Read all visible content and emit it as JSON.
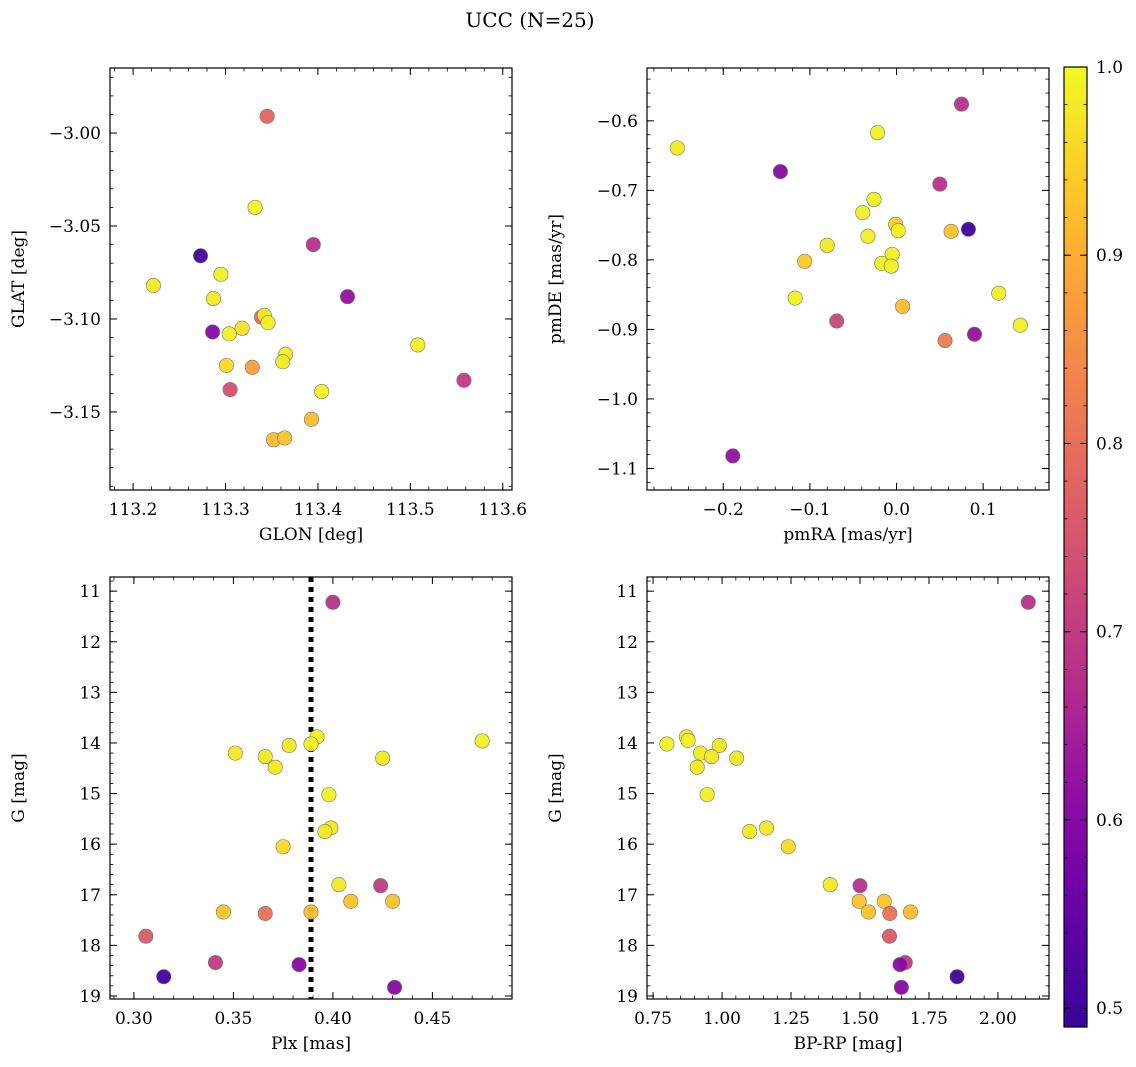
{
  "title": "UCC (N=25)",
  "colormap": {
    "name": "plasma",
    "range": [
      0.49,
      1.0
    ],
    "ticks": [
      0.5,
      0.6,
      0.7,
      0.8,
      0.9,
      1.0
    ],
    "tick_labels": [
      "0.5",
      "0.6",
      "0.7",
      "0.8",
      "0.9",
      "1.0"
    ]
  },
  "chart_data": [
    {
      "type": "scatter",
      "xlabel": "GLON [deg]",
      "ylabel": "GLAT [deg]",
      "xlim": [
        113.175,
        113.61
      ],
      "ylim": [
        -3.192,
        -2.965
      ],
      "xticks": [
        113.2,
        113.3,
        113.4,
        113.5,
        113.6
      ],
      "xtick_labels": [
        "113.2",
        "113.3",
        "113.4",
        "113.5",
        "113.6"
      ],
      "yticks": [
        -3.15,
        -3.1,
        -3.05,
        -3.0
      ],
      "ytick_labels": [
        "−3.15",
        "−3.10",
        "−3.05",
        "−3.00"
      ],
      "points": [
        {
          "x": 113.345,
          "y": -2.991,
          "c": 0.78
        },
        {
          "x": 113.332,
          "y": -3.04,
          "c": 1.0
        },
        {
          "x": 113.273,
          "y": -3.066,
          "c": 0.5
        },
        {
          "x": 113.395,
          "y": -3.06,
          "c": 0.68
        },
        {
          "x": 113.222,
          "y": -3.082,
          "c": 0.98
        },
        {
          "x": 113.295,
          "y": -3.076,
          "c": 0.99
        },
        {
          "x": 113.287,
          "y": -3.089,
          "c": 0.98
        },
        {
          "x": 113.432,
          "y": -3.088,
          "c": 0.62
        },
        {
          "x": 113.339,
          "y": -3.099,
          "c": 0.78
        },
        {
          "x": 113.342,
          "y": -3.098,
          "c": 0.98
        },
        {
          "x": 113.346,
          "y": -3.102,
          "c": 0.99
        },
        {
          "x": 113.318,
          "y": -3.105,
          "c": 0.97
        },
        {
          "x": 113.286,
          "y": -3.107,
          "c": 0.6
        },
        {
          "x": 113.304,
          "y": -3.108,
          "c": 0.99
        },
        {
          "x": 113.365,
          "y": -3.119,
          "c": 0.99
        },
        {
          "x": 113.362,
          "y": -3.123,
          "c": 0.98
        },
        {
          "x": 113.301,
          "y": -3.125,
          "c": 0.96
        },
        {
          "x": 113.329,
          "y": -3.126,
          "c": 0.88
        },
        {
          "x": 113.508,
          "y": -3.114,
          "c": 0.99
        },
        {
          "x": 113.558,
          "y": -3.133,
          "c": 0.7
        },
        {
          "x": 113.305,
          "y": -3.138,
          "c": 0.74
        },
        {
          "x": 113.404,
          "y": -3.139,
          "c": 0.99
        },
        {
          "x": 113.393,
          "y": -3.154,
          "c": 0.92
        },
        {
          "x": 113.352,
          "y": -3.165,
          "c": 0.92
        },
        {
          "x": 113.364,
          "y": -3.164,
          "c": 0.93
        }
      ]
    },
    {
      "type": "scatter",
      "xlabel": "pmRA [mas/yr]",
      "ylabel": "pmDE [mas/yr]",
      "xlim": [
        -0.288,
        0.176
      ],
      "ylim": [
        -1.131,
        -0.524
      ],
      "xticks": [
        -0.2,
        -0.1,
        0.0,
        0.1
      ],
      "xtick_labels": [
        "−0.2",
        "−0.1",
        "0.0",
        "0.1"
      ],
      "yticks": [
        -1.1,
        -1.0,
        -0.9,
        -0.8,
        -0.7,
        -0.6
      ],
      "ytick_labels": [
        "−1.1",
        "−1.0",
        "−0.9",
        "−0.8",
        "−0.7",
        "−0.6"
      ],
      "points": [
        {
          "x": 0.075,
          "y": -0.576,
          "c": 0.68
        },
        {
          "x": -0.022,
          "y": -0.617,
          "c": 0.99
        },
        {
          "x": -0.253,
          "y": -0.639,
          "c": 0.98
        },
        {
          "x": -0.134,
          "y": -0.673,
          "c": 0.6
        },
        {
          "x": 0.05,
          "y": -0.691,
          "c": 0.68
        },
        {
          "x": -0.026,
          "y": -0.713,
          "c": 0.99
        },
        {
          "x": -0.039,
          "y": -0.732,
          "c": 0.99
        },
        {
          "x": -0.001,
          "y": -0.749,
          "c": 0.95
        },
        {
          "x": 0.083,
          "y": -0.756,
          "c": 0.5
        },
        {
          "x": 0.063,
          "y": -0.759,
          "c": 0.93
        },
        {
          "x": 0.002,
          "y": -0.758,
          "c": 0.99
        },
        {
          "x": -0.033,
          "y": -0.766,
          "c": 0.99
        },
        {
          "x": -0.08,
          "y": -0.779,
          "c": 0.98
        },
        {
          "x": -0.005,
          "y": -0.792,
          "c": 0.99
        },
        {
          "x": -0.106,
          "y": -0.802,
          "c": 0.94
        },
        {
          "x": -0.017,
          "y": -0.805,
          "c": 0.99
        },
        {
          "x": -0.006,
          "y": -0.809,
          "c": 0.99
        },
        {
          "x": 0.118,
          "y": -0.848,
          "c": 0.99
        },
        {
          "x": -0.117,
          "y": -0.855,
          "c": 0.99
        },
        {
          "x": 0.007,
          "y": -0.867,
          "c": 0.92
        },
        {
          "x": -0.069,
          "y": -0.888,
          "c": 0.72
        },
        {
          "x": 0.143,
          "y": -0.894,
          "c": 0.99
        },
        {
          "x": 0.09,
          "y": -0.907,
          "c": 0.62
        },
        {
          "x": 0.056,
          "y": -0.916,
          "c": 0.82
        },
        {
          "x": -0.189,
          "y": -1.082,
          "c": 0.62
        }
      ]
    },
    {
      "type": "scatter",
      "xlabel": "Plx [mas]",
      "ylabel": "G [mag]",
      "xlim": [
        0.288,
        0.49
      ],
      "ylim": [
        19.06,
        10.72
      ],
      "y_inverted": true,
      "xticks": [
        0.3,
        0.35,
        0.4,
        0.45
      ],
      "xtick_labels": [
        "0.30",
        "0.35",
        "0.40",
        "0.45"
      ],
      "yticks": [
        11,
        12,
        13,
        14,
        15,
        16,
        17,
        18,
        19
      ],
      "ytick_labels": [
        "11",
        "12",
        "13",
        "14",
        "15",
        "16",
        "17",
        "18",
        "19"
      ],
      "vline": 0.389,
      "points": [
        {
          "x": 0.4,
          "y": 11.22,
          "c": 0.68
        },
        {
          "x": 0.392,
          "y": 13.88,
          "c": 0.99
        },
        {
          "x": 0.475,
          "y": 13.96,
          "c": 0.99
        },
        {
          "x": 0.389,
          "y": 14.02,
          "c": 0.99
        },
        {
          "x": 0.378,
          "y": 14.05,
          "c": 0.98
        },
        {
          "x": 0.351,
          "y": 14.2,
          "c": 0.98
        },
        {
          "x": 0.366,
          "y": 14.27,
          "c": 0.98
        },
        {
          "x": 0.425,
          "y": 14.3,
          "c": 0.98
        },
        {
          "x": 0.371,
          "y": 14.48,
          "c": 0.98
        },
        {
          "x": 0.398,
          "y": 15.02,
          "c": 0.99
        },
        {
          "x": 0.399,
          "y": 15.68,
          "c": 0.98
        },
        {
          "x": 0.396,
          "y": 15.75,
          "c": 0.98
        },
        {
          "x": 0.375,
          "y": 16.05,
          "c": 0.96
        },
        {
          "x": 0.403,
          "y": 16.8,
          "c": 0.98
        },
        {
          "x": 0.424,
          "y": 16.82,
          "c": 0.7
        },
        {
          "x": 0.409,
          "y": 17.13,
          "c": 0.93
        },
        {
          "x": 0.43,
          "y": 17.13,
          "c": 0.93
        },
        {
          "x": 0.345,
          "y": 17.34,
          "c": 0.93
        },
        {
          "x": 0.366,
          "y": 17.37,
          "c": 0.8
        },
        {
          "x": 0.389,
          "y": 17.34,
          "c": 0.92
        },
        {
          "x": 0.306,
          "y": 17.82,
          "c": 0.76
        },
        {
          "x": 0.341,
          "y": 18.34,
          "c": 0.7
        },
        {
          "x": 0.383,
          "y": 18.38,
          "c": 0.6
        },
        {
          "x": 0.315,
          "y": 18.62,
          "c": 0.5
        },
        {
          "x": 0.431,
          "y": 18.83,
          "c": 0.6
        }
      ]
    },
    {
      "type": "scatter",
      "xlabel": "BP-RP [mag]",
      "ylabel": "G [mag]",
      "xlim": [
        0.728,
        2.185
      ],
      "ylim": [
        19.06,
        10.72
      ],
      "y_inverted": true,
      "xticks": [
        0.75,
        1.0,
        1.25,
        1.5,
        1.75,
        2.0
      ],
      "xtick_labels": [
        "0.75",
        "1.00",
        "1.25",
        "1.50",
        "1.75",
        "2.00"
      ],
      "yticks": [
        11,
        12,
        13,
        14,
        15,
        16,
        17,
        18,
        19
      ],
      "ytick_labels": [
        "11",
        "12",
        "13",
        "14",
        "15",
        "16",
        "17",
        "18",
        "19"
      ],
      "points": [
        {
          "x": 2.11,
          "y": 11.22,
          "c": 0.68
        },
        {
          "x": 0.871,
          "y": 13.88,
          "c": 0.99
        },
        {
          "x": 0.877,
          "y": 13.95,
          "c": 0.99
        },
        {
          "x": 0.8,
          "y": 14.02,
          "c": 0.99
        },
        {
          "x": 0.99,
          "y": 14.05,
          "c": 0.98
        },
        {
          "x": 0.922,
          "y": 14.2,
          "c": 0.98
        },
        {
          "x": 0.962,
          "y": 14.27,
          "c": 0.98
        },
        {
          "x": 1.053,
          "y": 14.3,
          "c": 0.98
        },
        {
          "x": 0.91,
          "y": 14.48,
          "c": 0.98
        },
        {
          "x": 0.946,
          "y": 15.02,
          "c": 0.99
        },
        {
          "x": 1.161,
          "y": 15.68,
          "c": 0.98
        },
        {
          "x": 1.1,
          "y": 15.75,
          "c": 0.98
        },
        {
          "x": 1.24,
          "y": 16.05,
          "c": 0.96
        },
        {
          "x": 1.392,
          "y": 16.8,
          "c": 0.98
        },
        {
          "x": 1.5,
          "y": 16.82,
          "c": 0.68
        },
        {
          "x": 1.497,
          "y": 17.13,
          "c": 0.93
        },
        {
          "x": 1.588,
          "y": 17.13,
          "c": 0.93
        },
        {
          "x": 1.531,
          "y": 17.34,
          "c": 0.93
        },
        {
          "x": 1.608,
          "y": 17.37,
          "c": 0.8
        },
        {
          "x": 1.683,
          "y": 17.34,
          "c": 0.92
        },
        {
          "x": 1.607,
          "y": 17.82,
          "c": 0.76
        },
        {
          "x": 1.664,
          "y": 18.34,
          "c": 0.7
        },
        {
          "x": 1.645,
          "y": 18.38,
          "c": 0.6
        },
        {
          "x": 1.852,
          "y": 18.62,
          "c": 0.5
        },
        {
          "x": 1.65,
          "y": 18.83,
          "c": 0.6
        }
      ]
    }
  ]
}
